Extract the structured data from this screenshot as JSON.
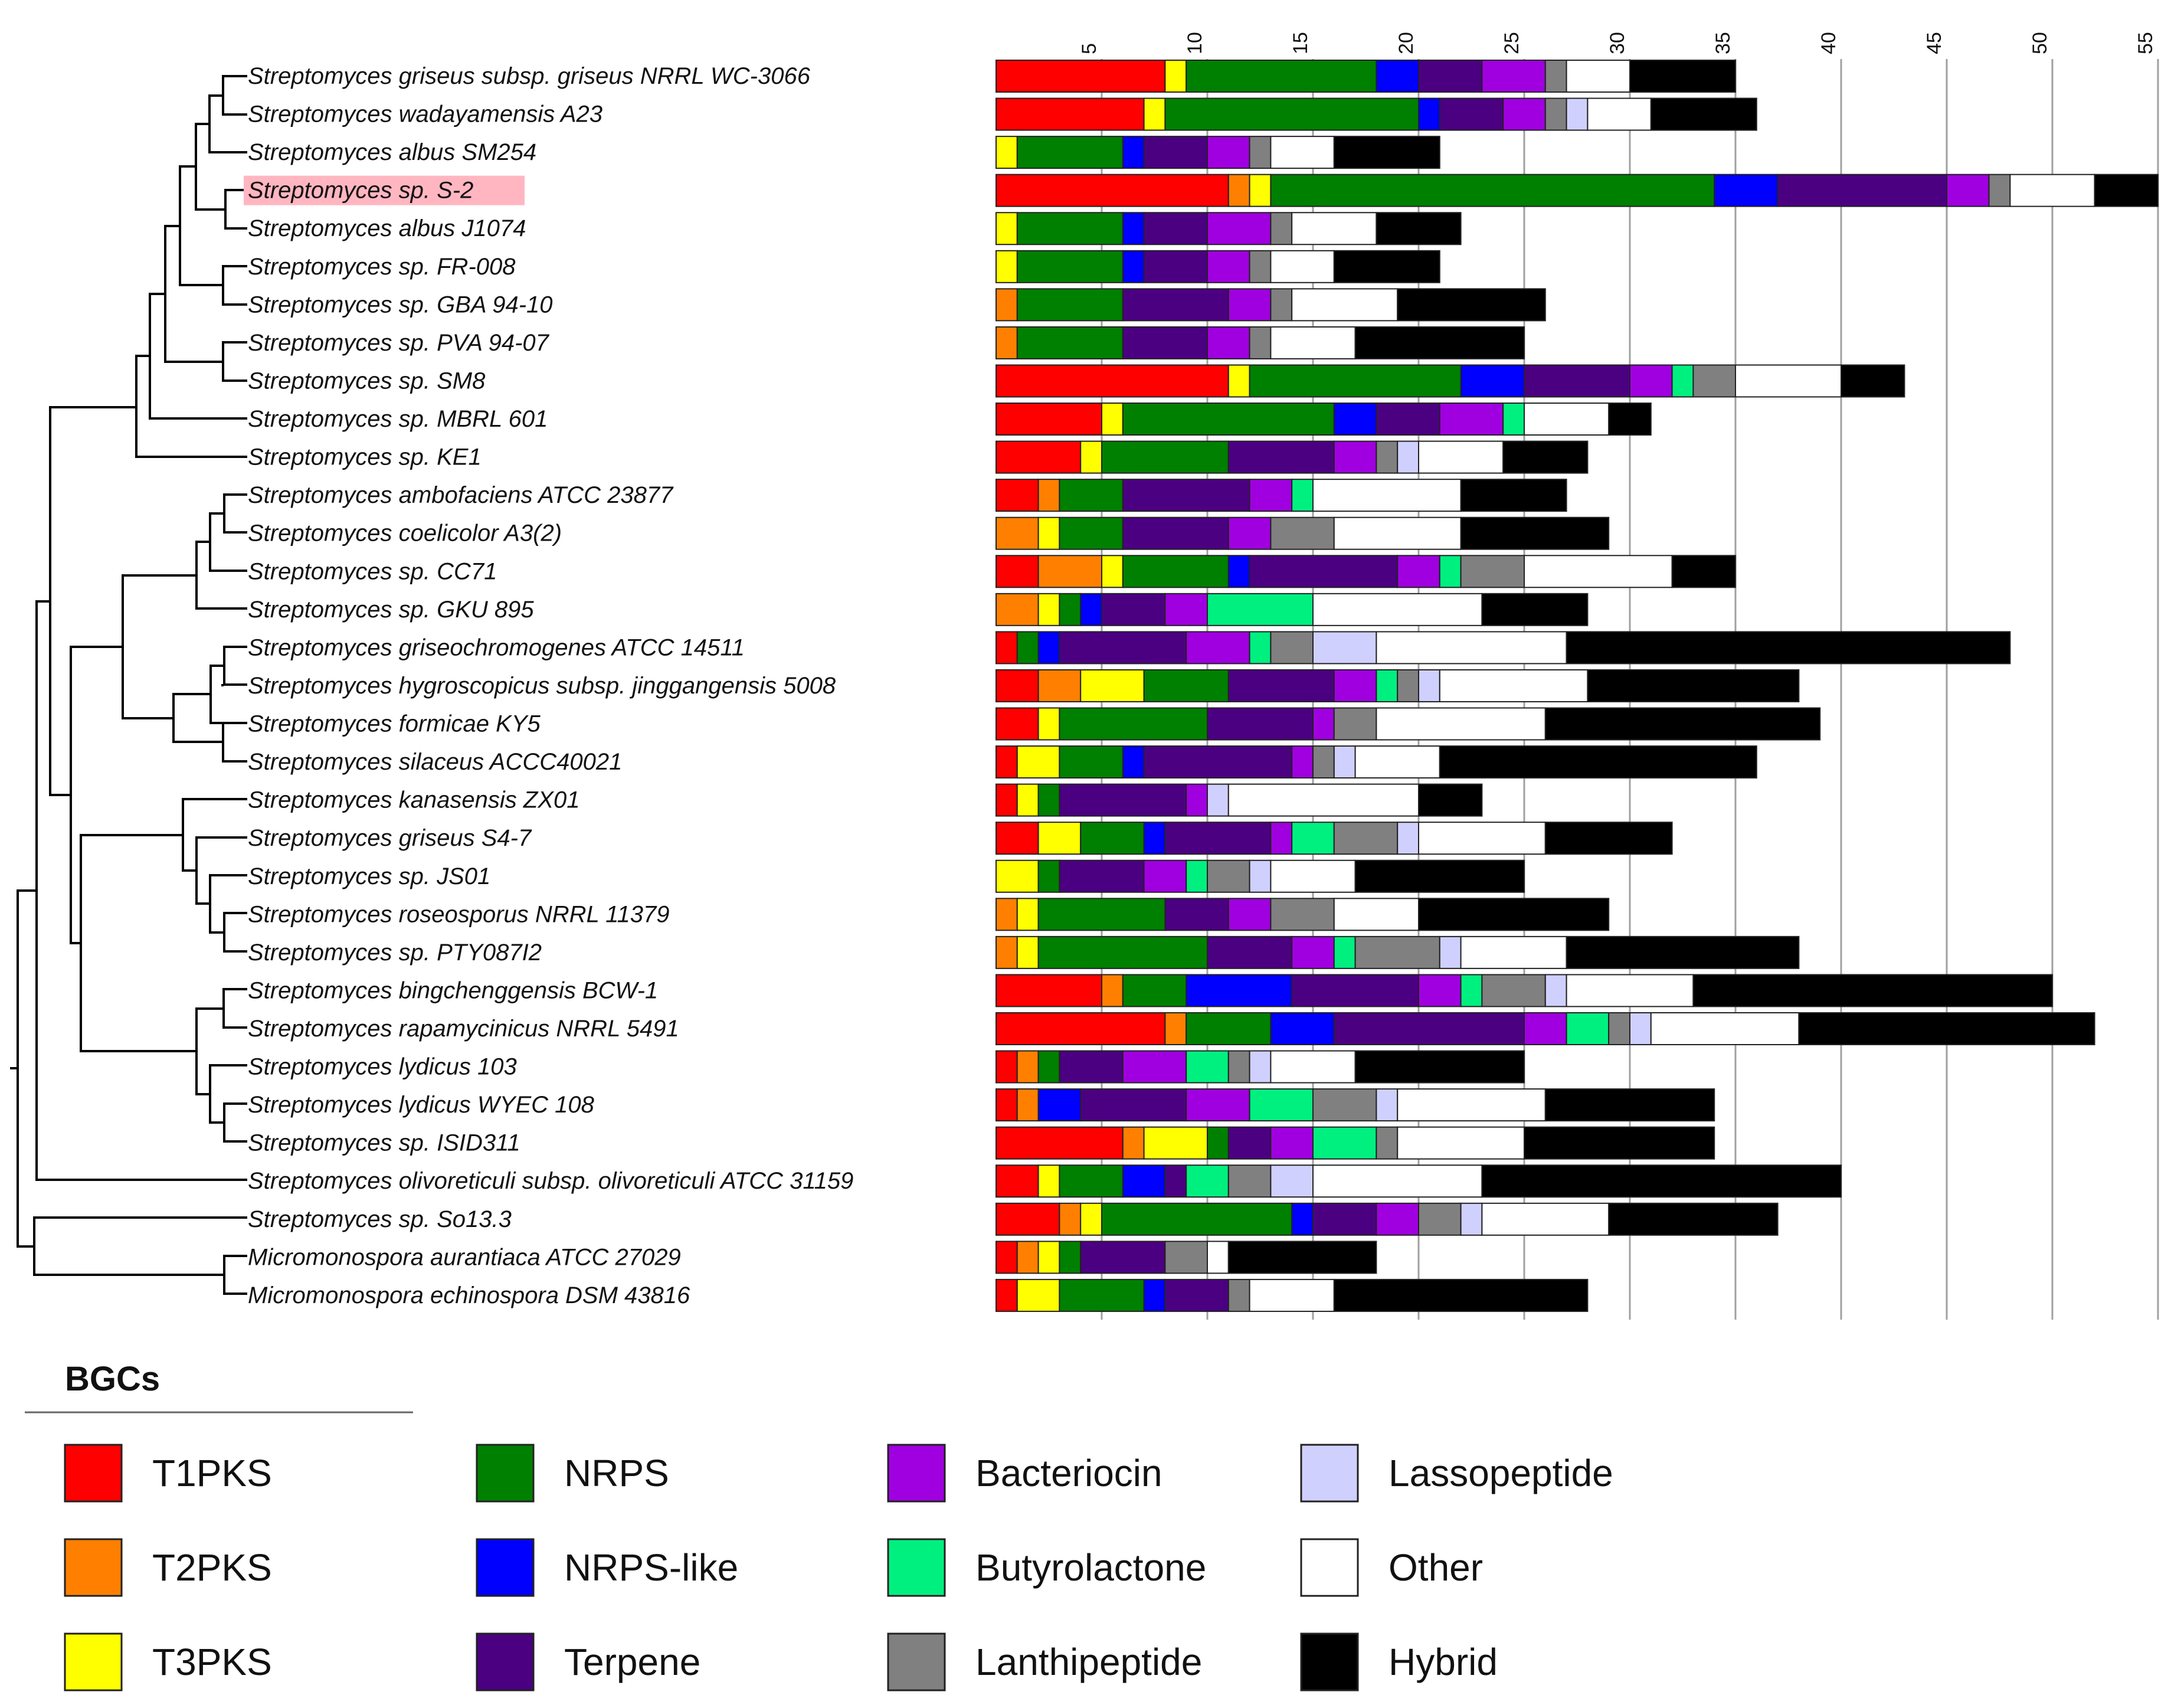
{
  "chart_data": {
    "type": "bar",
    "orientation": "horizontal-stacked",
    "title": "",
    "xlabel": "",
    "ylabel": "",
    "xlim": [
      0,
      55
    ],
    "x_ticks": [
      5,
      10,
      15,
      20,
      25,
      30,
      35,
      40,
      45,
      50,
      55
    ],
    "x_tick_labels": [
      "5",
      "10",
      "15",
      "20",
      "25",
      "30",
      "35",
      "40",
      "45",
      "50",
      "55"
    ],
    "grid": true,
    "highlighted_category": "Streptomyces sp. S-2",
    "categories": [
      "Streptomyces griseus subsp. griseus NRRL WC-3066",
      "Streptomyces wadayamensis A23",
      "Streptomyces albus SM254",
      "Streptomyces sp. S-2",
      "Streptomyces albus J1074",
      "Streptomyces sp. FR-008",
      "Streptomyces sp. GBA 94-10",
      "Streptomyces sp. PVA 94-07",
      "Streptomyces sp. SM8",
      "Streptomyces sp. MBRL 601",
      "Streptomyces sp. KE1",
      "Streptomyces ambofaciens ATCC 23877",
      "Streptomyces coelicolor A3(2)",
      "Streptomyces sp. CC71",
      "Streptomyces sp. GKU 895",
      "Streptomyces griseochromogenes ATCC 14511",
      "Streptomyces hygroscopicus subsp. jinggangensis 5008",
      "Streptomyces formicae KY5",
      "Streptomyces silaceus ACCC40021",
      "Streptomyces kanasensis ZX01",
      "Streptomyces griseus S4-7",
      "Streptomyces sp. JS01",
      "Streptomyces roseosporus NRRL 11379",
      "Streptomyces sp. PTY087I2",
      "Streptomyces bingchenggensis BCW-1",
      "Streptomyces rapamycinicus NRRL 5491",
      "Streptomyces lydicus 103",
      "Streptomyces lydicus WYEC 108",
      "Streptomyces sp. ISID311",
      "Streptomyces olivoreticuli subsp. olivoreticuli ATCC 31159",
      "Streptomyces sp. So13.3",
      "Micromonospora aurantiaca ATCC 27029",
      "Micromonospora echinospora DSM 43816"
    ],
    "series": [
      {
        "name": "T1PKS",
        "color": "#ff0000",
        "values": [
          8,
          7,
          0,
          11,
          0,
          0,
          0,
          0,
          11,
          5,
          4,
          2,
          0,
          2,
          0,
          1,
          2,
          2,
          1,
          1,
          2,
          0,
          0,
          0,
          5,
          8,
          1,
          1,
          6,
          2,
          3,
          1,
          1
        ]
      },
      {
        "name": "T2PKS",
        "color": "#ff8000",
        "values": [
          0,
          0,
          0,
          1,
          0,
          0,
          1,
          1,
          0,
          0,
          0,
          1,
          2,
          3,
          2,
          0,
          2,
          0,
          0,
          0,
          0,
          0,
          1,
          1,
          1,
          1,
          1,
          1,
          1,
          0,
          1,
          1,
          0
        ]
      },
      {
        "name": "T3PKS",
        "color": "#ffff00",
        "values": [
          1,
          1,
          1,
          1,
          1,
          1,
          0,
          0,
          1,
          1,
          1,
          0,
          1,
          1,
          1,
          0,
          3,
          1,
          2,
          1,
          2,
          2,
          1,
          1,
          0,
          0,
          0,
          0,
          3,
          1,
          1,
          1,
          2
        ]
      },
      {
        "name": "NRPS",
        "color": "#008000",
        "values": [
          9,
          12,
          5,
          21,
          5,
          5,
          5,
          5,
          10,
          10,
          6,
          3,
          3,
          5,
          1,
          1,
          4,
          7,
          3,
          1,
          3,
          1,
          6,
          8,
          3,
          4,
          1,
          0,
          1,
          3,
          9,
          1,
          4
        ]
      },
      {
        "name": "NRPS-like",
        "color": "#0000ff",
        "values": [
          2,
          1,
          1,
          3,
          1,
          1,
          0,
          0,
          3,
          2,
          0,
          0,
          0,
          1,
          1,
          1,
          0,
          0,
          1,
          0,
          1,
          0,
          0,
          0,
          5,
          3,
          0,
          2,
          0,
          2,
          1,
          0,
          1
        ]
      },
      {
        "name": "Terpene",
        "color": "#4b0082",
        "values": [
          3,
          3,
          3,
          8,
          3,
          3,
          5,
          4,
          5,
          3,
          5,
          6,
          5,
          7,
          3,
          6,
          5,
          5,
          7,
          6,
          5,
          4,
          3,
          4,
          6,
          9,
          3,
          5,
          2,
          1,
          3,
          4,
          3
        ]
      },
      {
        "name": "Bacteriocin",
        "color": "#a000e0",
        "values": [
          3,
          2,
          2,
          2,
          3,
          2,
          2,
          2,
          2,
          3,
          2,
          2,
          2,
          2,
          2,
          3,
          2,
          1,
          1,
          1,
          1,
          2,
          2,
          2,
          2,
          2,
          3,
          3,
          2,
          0,
          2,
          0,
          0
        ]
      },
      {
        "name": "Butyrolactone",
        "color": "#00f080",
        "values": [
          0,
          0,
          0,
          0,
          0,
          0,
          0,
          0,
          1,
          1,
          0,
          1,
          0,
          1,
          5,
          1,
          1,
          0,
          0,
          0,
          2,
          1,
          0,
          1,
          1,
          2,
          2,
          3,
          3,
          2,
          0,
          0,
          0
        ]
      },
      {
        "name": "Lanthipeptide",
        "color": "#808080",
        "values": [
          1,
          1,
          1,
          1,
          1,
          1,
          1,
          1,
          2,
          0,
          1,
          0,
          3,
          3,
          0,
          2,
          1,
          2,
          1,
          0,
          3,
          2,
          3,
          4,
          3,
          1,
          1,
          3,
          1,
          2,
          2,
          2,
          1
        ]
      },
      {
        "name": "Lassopeptide",
        "color": "#d0d0ff",
        "values": [
          0,
          1,
          0,
          0,
          0,
          0,
          0,
          0,
          0,
          0,
          1,
          0,
          0,
          0,
          0,
          3,
          1,
          0,
          1,
          1,
          1,
          1,
          0,
          1,
          1,
          1,
          1,
          1,
          0,
          2,
          1,
          0,
          0
        ]
      },
      {
        "name": "Other",
        "color": "#ffffff",
        "values": [
          3,
          3,
          3,
          4,
          4,
          3,
          5,
          4,
          5,
          4,
          4,
          7,
          6,
          7,
          8,
          9,
          7,
          8,
          4,
          9,
          6,
          4,
          4,
          5,
          6,
          7,
          4,
          7,
          6,
          8,
          6,
          1,
          4
        ]
      },
      {
        "name": "Hybrid",
        "color": "#000000",
        "values": [
          5,
          5,
          5,
          3,
          4,
          5,
          7,
          8,
          3,
          2,
          4,
          5,
          7,
          3,
          5,
          21,
          10,
          13,
          15,
          3,
          6,
          8,
          9,
          11,
          17,
          14,
          8,
          8,
          9,
          17,
          8,
          7,
          12
        ]
      }
    ]
  },
  "legend": {
    "title": "BGCs",
    "entries": [
      {
        "label": "T1PKS",
        "color": "#ff0000"
      },
      {
        "label": "T2PKS",
        "color": "#ff8000"
      },
      {
        "label": "T3PKS",
        "color": "#ffff00"
      },
      {
        "label": "NRPS",
        "color": "#008000"
      },
      {
        "label": "NRPS-like",
        "color": "#0000ff"
      },
      {
        "label": "Terpene",
        "color": "#4b0082"
      },
      {
        "label": "Bacteriocin",
        "color": "#a000e0"
      },
      {
        "label": "Butyrolactone",
        "color": "#00f080"
      },
      {
        "label": "Lanthipeptide",
        "color": "#808080"
      },
      {
        "label": "Lassopeptide",
        "color": "#d0d0ff"
      },
      {
        "label": "Other",
        "color": "#ffffff"
      },
      {
        "label": "Hybrid",
        "color": "#000000"
      }
    ]
  },
  "highlight_color": "#ffb6c1",
  "tree_color": "#000000"
}
